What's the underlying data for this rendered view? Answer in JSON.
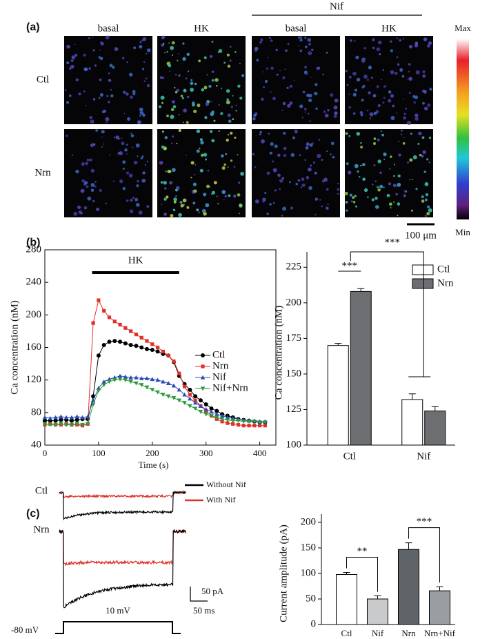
{
  "panel_labels": [
    "(a)",
    "(b)",
    "(c)"
  ],
  "panel_a": {
    "group_label": "Nif",
    "columns": [
      "basal",
      "HK",
      "basal",
      "HK"
    ],
    "rows": [
      "Ctl",
      "Nrn"
    ],
    "colorbar": {
      "max": "Max",
      "min": "Min"
    },
    "scale_bar": "100 μm"
  },
  "panel_c": {
    "rows": [
      "Ctl",
      "Nrn"
    ],
    "legend": [
      {
        "name": "Without Nif",
        "color": "#000000"
      },
      {
        "name": "With Nif",
        "color": "#e0302a"
      }
    ],
    "scale": {
      "current": "50 pA",
      "time": "50 ms"
    },
    "step": {
      "holding": "-80 mV",
      "test": "10 mV"
    }
  },
  "chart_data": [
    {
      "type": "line",
      "x_label": "Time (s)",
      "y_label": "Ca concentration (nM)",
      "x": [
        0,
        10,
        20,
        30,
        40,
        50,
        60,
        70,
        80,
        90,
        100,
        110,
        120,
        130,
        140,
        150,
        160,
        170,
        180,
        190,
        200,
        210,
        220,
        230,
        240,
        250,
        260,
        270,
        280,
        290,
        300,
        310,
        320,
        330,
        340,
        350,
        360,
        370,
        380,
        390,
        400,
        410
      ],
      "series": [
        {
          "name": "Ctl",
          "color": "#000000",
          "marker": "circle",
          "values": [
            70,
            70,
            70,
            71,
            71,
            70,
            71,
            72,
            72,
            100,
            150,
            163,
            167,
            168,
            167,
            165,
            163,
            162,
            160,
            158,
            157,
            155,
            152,
            150,
            142,
            125,
            115,
            108,
            100,
            95,
            90,
            85,
            82,
            78,
            76,
            74,
            72,
            71,
            70,
            69,
            68,
            68
          ]
        },
        {
          "name": "Nrn",
          "color": "#e0302a",
          "marker": "square",
          "values": [
            65,
            66,
            65,
            65,
            66,
            65,
            65,
            64,
            66,
            190,
            218,
            205,
            197,
            192,
            188,
            184,
            180,
            176,
            172,
            168,
            164,
            160,
            155,
            150,
            143,
            128,
            112,
            102,
            95,
            88,
            82,
            76,
            72,
            69,
            67,
            66,
            65,
            64,
            64,
            64,
            64,
            64
          ]
        },
        {
          "name": "Nif",
          "color": "#2b4bb8",
          "marker": "triangle",
          "values": [
            74,
            73,
            74,
            75,
            74,
            74,
            75,
            74,
            75,
            95,
            110,
            118,
            121,
            123,
            125,
            124,
            123,
            123,
            122,
            122,
            121,
            120,
            118,
            116,
            113,
            108,
            102,
            97,
            92,
            88,
            84,
            81,
            78,
            76,
            74,
            73,
            72,
            71,
            70,
            70,
            69,
            69
          ]
        },
        {
          "name": "Nif+Nrn",
          "color": "#2e9a3a",
          "marker": "triangle-down",
          "values": [
            66,
            65,
            65,
            66,
            65,
            65,
            66,
            65,
            66,
            90,
            107,
            114,
            118,
            120,
            121,
            120,
            118,
            116,
            114,
            111,
            108,
            105,
            102,
            100,
            98,
            95,
            92,
            88,
            85,
            81,
            78,
            76,
            74,
            72,
            71,
            70,
            70,
            69,
            69,
            69,
            68,
            68
          ]
        }
      ],
      "xlim": [
        0,
        430
      ],
      "ylim": [
        40,
        280
      ],
      "xticks": [
        0,
        100,
        200,
        300,
        400
      ],
      "yticks": [
        40,
        80,
        120,
        160,
        200,
        240,
        280
      ],
      "annotations": [
        {
          "text": "HK",
          "x0": 88,
          "x1": 250,
          "y": 252
        }
      ],
      "legend": "center-right"
    },
    {
      "type": "grouped-bar",
      "y_label": "Ca concentration (nM)",
      "categories": [
        "Ctl",
        "Nif"
      ],
      "series": [
        {
          "name": "Ctl",
          "color": "#ffffff",
          "values": [
            170,
            132
          ],
          "errors": [
            1.5,
            4
          ]
        },
        {
          "name": "Nrn",
          "color": "#6d6e71",
          "values": [
            208,
            124
          ],
          "errors": [
            2,
            3
          ]
        }
      ],
      "ylim": [
        100,
        230
      ],
      "yticks": [
        100,
        125,
        150,
        175,
        200,
        225
      ],
      "legend": "top-right",
      "significance": [
        {
          "text": "***"
        },
        {
          "text": "***"
        }
      ]
    },
    {
      "type": "bar",
      "y_label": "Current amplitude (pA)",
      "categories": [
        "Ctl",
        "Nif",
        "Nrn",
        "Nrn+Nif"
      ],
      "values": [
        98,
        50,
        147,
        66
      ],
      "errors": [
        4,
        6,
        13,
        8
      ],
      "colors": [
        "#ffffff",
        "#c8cacc",
        "#5f6468",
        "#9a9ea2"
      ],
      "ylim": [
        0,
        200
      ],
      "yticks": [
        0,
        50,
        100,
        150,
        200
      ],
      "significance": [
        {
          "text": "**",
          "from": 0,
          "to": 1
        },
        {
          "text": "***",
          "from": 2,
          "to": 3
        }
      ]
    }
  ]
}
